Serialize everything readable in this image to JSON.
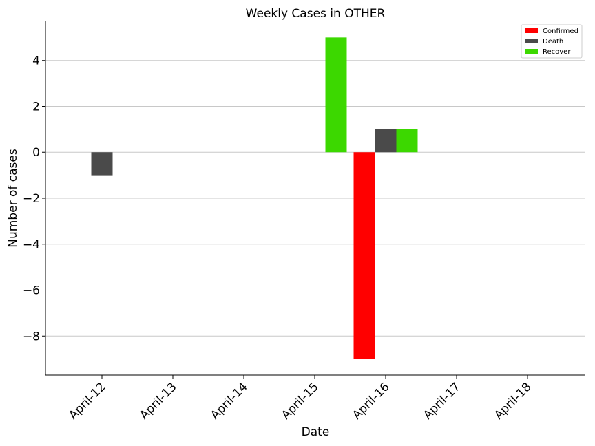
{
  "chart_data": {
    "type": "bar",
    "title": "Weekly Cases in OTHER",
    "xlabel": "Date",
    "ylabel": "Number of cases",
    "categories": [
      "April-12",
      "April-13",
      "April-14",
      "April-15",
      "April-16",
      "April-17",
      "April-18"
    ],
    "series": [
      {
        "name": "Confirmed",
        "color": "#ff0000",
        "values": [
          0,
          0,
          0,
          0,
          -9,
          0,
          0
        ]
      },
      {
        "name": "Death",
        "color": "#4a4a4a",
        "values": [
          -1,
          0,
          0,
          0,
          1,
          0,
          0
        ]
      },
      {
        "name": "Recover",
        "color": "#3cd800",
        "values": [
          0,
          0,
          0,
          5,
          1,
          0,
          0
        ]
      }
    ],
    "yticks": [
      "4",
      "2",
      "0",
      "−2",
      "−4",
      "−6",
      "−8"
    ],
    "ylim": [
      -9.7,
      5.7
    ],
    "grid": "horizontal",
    "legend_position": "top-right"
  }
}
